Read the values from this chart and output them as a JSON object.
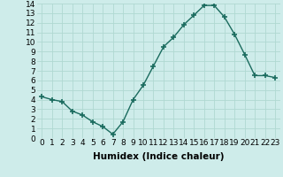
{
  "x": [
    0,
    1,
    2,
    3,
    4,
    5,
    6,
    7,
    8,
    9,
    10,
    11,
    12,
    13,
    14,
    15,
    16,
    17,
    18,
    19,
    20,
    21,
    22,
    23
  ],
  "y": [
    4.3,
    4.0,
    3.8,
    2.8,
    2.4,
    1.7,
    1.2,
    0.4,
    1.7,
    4.0,
    5.5,
    7.5,
    9.5,
    10.5,
    11.8,
    12.8,
    13.8,
    13.8,
    12.6,
    10.8,
    8.7,
    6.5,
    6.5,
    6.3
  ],
  "xlabel": "Humidex (Indice chaleur)",
  "ylim": [
    0,
    14
  ],
  "xlim": [
    -0.5,
    23.5
  ],
  "yticks": [
    0,
    1,
    2,
    3,
    4,
    5,
    6,
    7,
    8,
    9,
    10,
    11,
    12,
    13,
    14
  ],
  "xticks": [
    0,
    1,
    2,
    3,
    4,
    5,
    6,
    7,
    8,
    9,
    10,
    11,
    12,
    13,
    14,
    15,
    16,
    17,
    18,
    19,
    20,
    21,
    22,
    23
  ],
  "line_color": "#1a6b5e",
  "marker": "+",
  "marker_size": 4,
  "marker_lw": 1.2,
  "line_width": 1.0,
  "bg_color": "#ceecea",
  "grid_color": "#b0d8d2",
  "xlabel_fontsize": 7.5,
  "tick_fontsize": 6.5,
  "xlabel_fontweight": "bold"
}
